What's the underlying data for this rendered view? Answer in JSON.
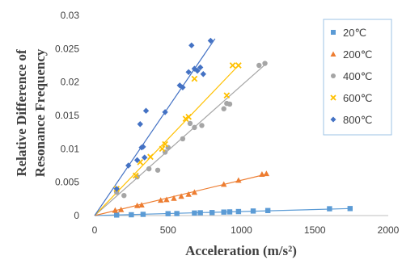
{
  "chart_data": {
    "type": "scatter",
    "title": "",
    "xlabel": "Acceleration (m/s²)",
    "ylabel_lines": [
      "Relative Difference of",
      "Resonance Frequency"
    ],
    "xlim": [
      0,
      2000
    ],
    "ylim": [
      0,
      0.03
    ],
    "x_ticks": [
      0,
      500,
      1000,
      1500,
      2000
    ],
    "x_tick_labels": [
      "0",
      "500",
      "1000",
      "1500",
      "2000"
    ],
    "y_ticks": [
      0,
      0.005,
      0.01,
      0.015,
      0.02,
      0.025,
      0.03
    ],
    "y_tick_labels": [
      "0",
      "0.005",
      "0.01",
      "0.015",
      "0.02",
      "0.025",
      "0.03"
    ],
    "grid": false,
    "legend_position": "top-right",
    "series": [
      {
        "name": "20℃",
        "marker": "square",
        "color": "#5B9BD5",
        "trend": [
          [
            0,
            0.0
          ],
          [
            1740,
            0.00105
          ]
        ],
        "points": [
          [
            150,
            8e-05
          ],
          [
            250,
            0.00012
          ],
          [
            330,
            0.00018
          ],
          [
            500,
            0.00028
          ],
          [
            560,
            0.0003
          ],
          [
            680,
            0.00038
          ],
          [
            720,
            0.00042
          ],
          [
            800,
            0.00045
          ],
          [
            880,
            0.00052
          ],
          [
            920,
            0.00055
          ],
          [
            980,
            0.0006
          ],
          [
            1080,
            0.00068
          ],
          [
            1180,
            0.00075
          ],
          [
            1600,
            0.00102
          ],
          [
            1740,
            0.00105
          ]
        ]
      },
      {
        "name": "200℃",
        "marker": "triangle",
        "color": "#ED7D31",
        "trend": [
          [
            0,
            0.0
          ],
          [
            1170,
            0.0062
          ]
        ],
        "points": [
          [
            140,
            0.0008
          ],
          [
            180,
            0.0009
          ],
          [
            290,
            0.0015
          ],
          [
            320,
            0.0016
          ],
          [
            450,
            0.0023
          ],
          [
            490,
            0.0024
          ],
          [
            540,
            0.0026
          ],
          [
            590,
            0.0029
          ],
          [
            640,
            0.0032
          ],
          [
            680,
            0.0035
          ],
          [
            880,
            0.0047
          ],
          [
            980,
            0.0053
          ],
          [
            1140,
            0.0062
          ],
          [
            1170,
            0.0063
          ]
        ]
      },
      {
        "name": "400℃",
        "marker": "circle",
        "color": "#A5A5A5",
        "trend": [
          [
            0,
            0.0
          ],
          [
            1170,
            0.0228
          ]
        ],
        "points": [
          [
            150,
            0.0035
          ],
          [
            200,
            0.003
          ],
          [
            290,
            0.0058
          ],
          [
            370,
            0.007
          ],
          [
            430,
            0.0068
          ],
          [
            480,
            0.0095
          ],
          [
            500,
            0.0102
          ],
          [
            600,
            0.0115
          ],
          [
            650,
            0.0138
          ],
          [
            680,
            0.0132
          ],
          [
            730,
            0.0135
          ],
          [
            880,
            0.016
          ],
          [
            900,
            0.0168
          ],
          [
            920,
            0.0167
          ],
          [
            1120,
            0.0225
          ],
          [
            1160,
            0.0228
          ]
        ]
      },
      {
        "name": "600℃",
        "marker": "x",
        "color": "#FFC000",
        "trend": [
          [
            0,
            0.0
          ],
          [
            980,
            0.0225
          ]
        ],
        "points": [
          [
            150,
            0.004
          ],
          [
            280,
            0.006
          ],
          [
            310,
            0.008
          ],
          [
            380,
            0.0088
          ],
          [
            460,
            0.01
          ],
          [
            480,
            0.0107
          ],
          [
            620,
            0.0145
          ],
          [
            640,
            0.0148
          ],
          [
            680,
            0.0205
          ],
          [
            900,
            0.018
          ],
          [
            940,
            0.0225
          ],
          [
            980,
            0.0225
          ]
        ]
      },
      {
        "name": "800℃",
        "marker": "diamond",
        "color": "#4472C4",
        "trend": [
          [
            0,
            0.0
          ],
          [
            820,
            0.0265
          ]
        ],
        "points": [
          [
            150,
            0.004
          ],
          [
            230,
            0.0075
          ],
          [
            290,
            0.0083
          ],
          [
            320,
            0.0102
          ],
          [
            330,
            0.0103
          ],
          [
            340,
            0.0087
          ],
          [
            350,
            0.0157
          ],
          [
            310,
            0.0137
          ],
          [
            480,
            0.0155
          ],
          [
            580,
            0.0195
          ],
          [
            600,
            0.0192
          ],
          [
            640,
            0.0215
          ],
          [
            660,
            0.0255
          ],
          [
            680,
            0.022
          ],
          [
            700,
            0.0217
          ],
          [
            720,
            0.0222
          ],
          [
            740,
            0.0212
          ],
          [
            790,
            0.0262
          ]
        ]
      }
    ]
  }
}
